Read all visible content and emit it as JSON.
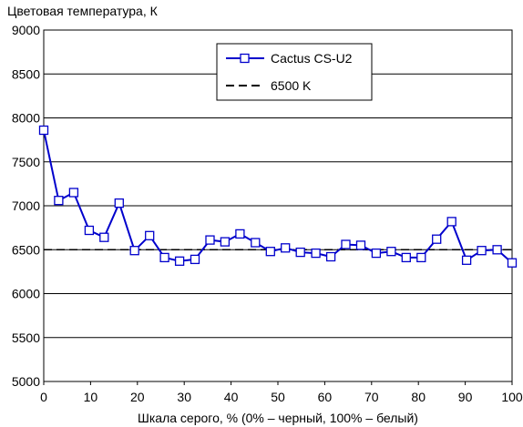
{
  "chart_data": {
    "type": "line",
    "ylabel": "Цветовая температура, К",
    "xlabel": "Шкала серого, % (0% – черный, 100% – белый)",
    "xlim": [
      0,
      100
    ],
    "ylim": [
      5000,
      9000
    ],
    "x_ticks": [
      0,
      10,
      20,
      30,
      40,
      50,
      60,
      70,
      80,
      90,
      100
    ],
    "y_ticks": [
      5000,
      5500,
      6000,
      6500,
      7000,
      7500,
      8000,
      8500,
      9000
    ],
    "grid": "horizontal",
    "legend_position": "top-center",
    "series": [
      {
        "name": "Cactus CS-U2",
        "color": "#0000cc",
        "marker": "square",
        "x": [
          0,
          3.2,
          6.4,
          9.7,
          12.9,
          16.1,
          19.4,
          22.6,
          25.8,
          29.0,
          32.3,
          35.5,
          38.7,
          41.9,
          45.2,
          48.4,
          51.6,
          54.8,
          58.1,
          61.3,
          64.5,
          67.7,
          71.0,
          74.2,
          77.4,
          80.6,
          83.9,
          87.1,
          90.3,
          93.5,
          96.8,
          100
        ],
        "y": [
          7860,
          7060,
          7150,
          6720,
          6640,
          7030,
          6490,
          6660,
          6410,
          6370,
          6390,
          6610,
          6590,
          6680,
          6580,
          6480,
          6520,
          6470,
          6460,
          6420,
          6560,
          6550,
          6460,
          6480,
          6410,
          6410,
          6620,
          6820,
          6380,
          6490,
          6500,
          6350
        ]
      },
      {
        "name": "6500 K",
        "color": "#000000",
        "style": "dashed",
        "x": [
          0,
          100
        ],
        "y": [
          6500,
          6500
        ]
      }
    ]
  }
}
